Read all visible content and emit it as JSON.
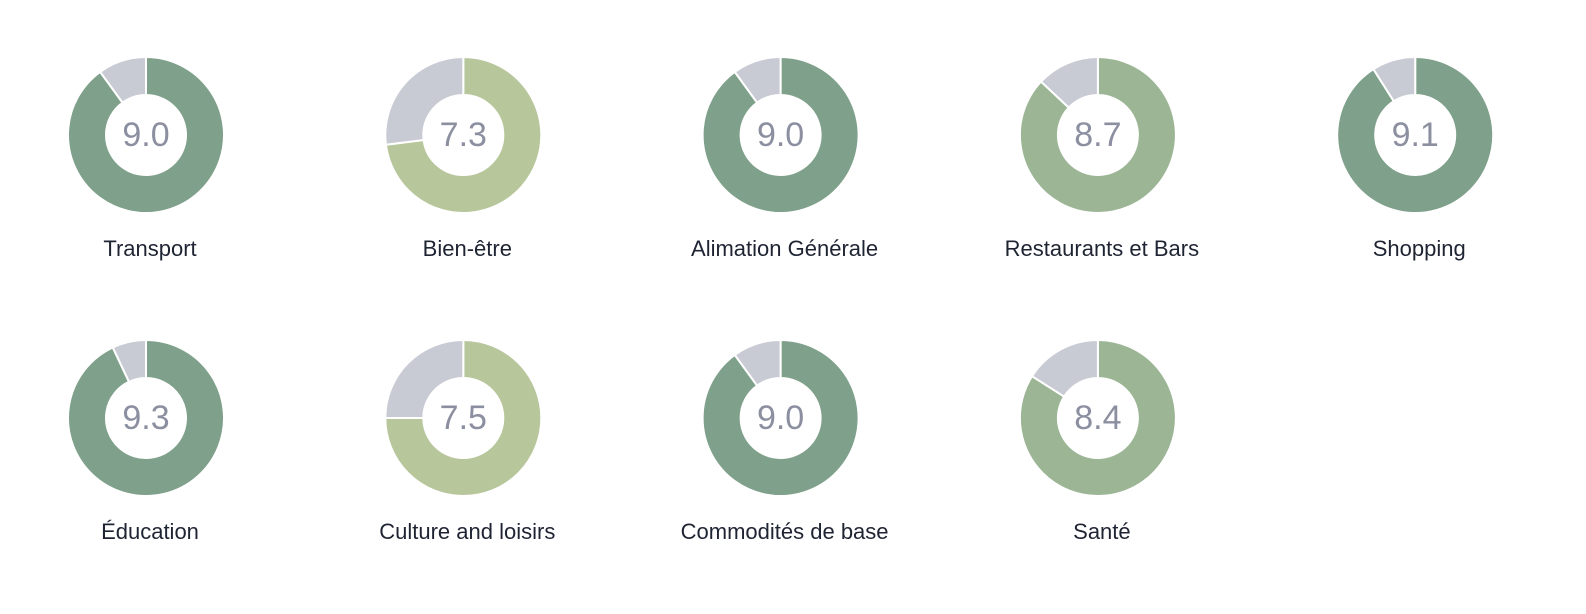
{
  "scale_max": 10,
  "rest_color": "#c8cbd3",
  "items": [
    {
      "label": "Transport",
      "score": 9.0,
      "score_label": "9.0",
      "color": "#7fa08a"
    },
    {
      "label": "Bien-être",
      "score": 7.3,
      "score_label": "7.3",
      "color": "#b8c69c"
    },
    {
      "label": "Alimation Générale",
      "score": 9.0,
      "score_label": "9.0",
      "color": "#7fa08a"
    },
    {
      "label": "Restaurants et Bars",
      "score": 8.7,
      "score_label": "8.7",
      "color": "#9bb595"
    },
    {
      "label": "Shopping",
      "score": 9.1,
      "score_label": "9.1",
      "color": "#7fa08a"
    },
    {
      "label": "Éducation",
      "score": 9.3,
      "score_label": "9.3",
      "color": "#7fa08a"
    },
    {
      "label": "Culture and loisirs",
      "score": 7.5,
      "score_label": "7.5",
      "color": "#b8c69c"
    },
    {
      "label": "Commodités de base",
      "score": 9.0,
      "score_label": "9.0",
      "color": "#7fa08a"
    },
    {
      "label": "Santé",
      "score": 8.4,
      "score_label": "8.4",
      "color": "#9bb595"
    }
  ]
}
